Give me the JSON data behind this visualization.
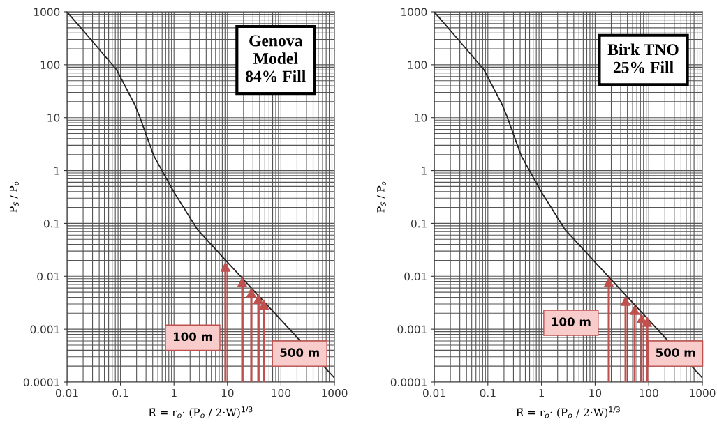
{
  "chart_data": [
    {
      "type": "line",
      "xlabel": "R̄ = r$_{o}$· (P$_{o}$ / 2·W)$^{1/3}$",
      "ylabel": "P$_{S}$ / P$_{o}$",
      "log": "xy",
      "grid": true,
      "legend": false,
      "xlim": [
        0.01,
        1000
      ],
      "ylim": [
        0.0001,
        1000
      ],
      "xticks": [
        0.01,
        0.1,
        1,
        10,
        100,
        1000
      ],
      "yticks": [
        0.0001,
        0.001,
        0.01,
        0.1,
        1,
        10,
        100,
        1000
      ],
      "series": [
        {
          "color": "#222222",
          "x": [
            0.01,
            0.0304,
            0.0845,
            0.184,
            0.227,
            0.416,
            1.02,
            2.76,
            10,
            100,
            1000
          ],
          "values": [
            1000,
            271,
            80.5,
            17.7,
            10.6,
            1.93,
            0.376,
            0.076,
            0.0185,
            0.0015,
            0.00012
          ]
        },
        {
          "type": "lollipop",
          "marker": "triangle",
          "color": "#c0504d",
          "x": [
            9.2,
            18.9,
            27.9,
            37.8,
            48
          ],
          "values": [
            0.0151,
            0.0077,
            0.0049,
            0.0037,
            0.0029
          ]
        }
      ],
      "annotations": [
        "Genova\nModel\n84% Fill",
        "100 m",
        "500 m"
      ]
    },
    {
      "type": "line",
      "xlabel": "R̄ = r$_{o}$· (P$_{o}$ / 2·W)$^{1/3}$",
      "ylabel": "P$_{S}$ / P$_{o}$",
      "log": "xy",
      "grid": true,
      "legend": false,
      "xlim": [
        0.01,
        1000
      ],
      "ylim": [
        0.0001,
        1000
      ],
      "xticks": [
        0.01,
        0.1,
        1,
        10,
        100,
        1000
      ],
      "yticks": [
        0.0001,
        0.001,
        0.01,
        0.1,
        1,
        10,
        100,
        1000
      ],
      "series": [
        {
          "color": "#222222",
          "x": [
            0.01,
            0.0304,
            0.0845,
            0.184,
            0.227,
            0.416,
            1.02,
            2.76,
            10,
            100,
            1000
          ],
          "values": [
            1000,
            271,
            80.5,
            17.7,
            10.6,
            1.93,
            0.376,
            0.076,
            0.0185,
            0.0015,
            0.00012
          ]
        },
        {
          "type": "lollipop",
          "marker": "triangle",
          "color": "#c0504d",
          "x": [
            18,
            37,
            54.6,
            73.6,
            93.6
          ],
          "values": [
            0.0077,
            0.0034,
            0.0023,
            0.00158,
            0.00137
          ]
        }
      ],
      "annotations": [
        "Birk TNO\n25% Fill",
        "100 m",
        "500 m"
      ]
    }
  ]
}
